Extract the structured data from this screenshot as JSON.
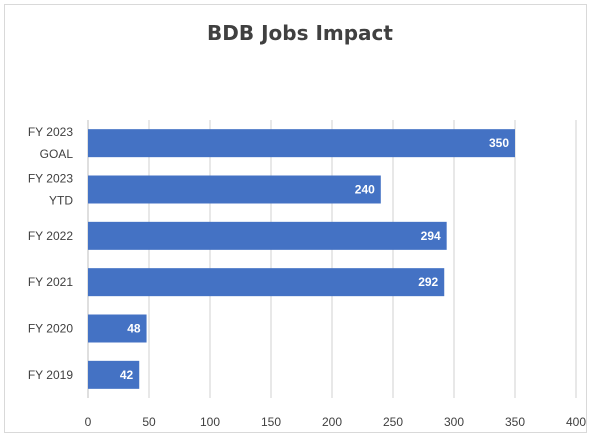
{
  "chart_data": {
    "type": "bar",
    "orientation": "horizontal",
    "title": "BDB Jobs Impact",
    "categories": [
      [
        "FY 2023",
        "GOAL"
      ],
      [
        "FY 2023",
        "YTD"
      ],
      [
        "FY 2022"
      ],
      [
        "FY 2021"
      ],
      [
        "FY 2020"
      ],
      [
        "FY 2019"
      ]
    ],
    "values": [
      350,
      240,
      294,
      292,
      48,
      42
    ],
    "data_labels": [
      "350",
      "240",
      "294",
      "292",
      "48",
      "42"
    ],
    "xlim": [
      0,
      400
    ],
    "xticks": [
      0,
      50,
      100,
      150,
      200,
      250,
      300,
      350,
      400
    ],
    "xtick_labels": [
      "0",
      "50",
      "100",
      "150",
      "200",
      "250",
      "300",
      "350",
      "400"
    ],
    "xlabel": "",
    "ylabel": "",
    "grid": true,
    "bar_color": "#4472C4",
    "legend": "none"
  }
}
